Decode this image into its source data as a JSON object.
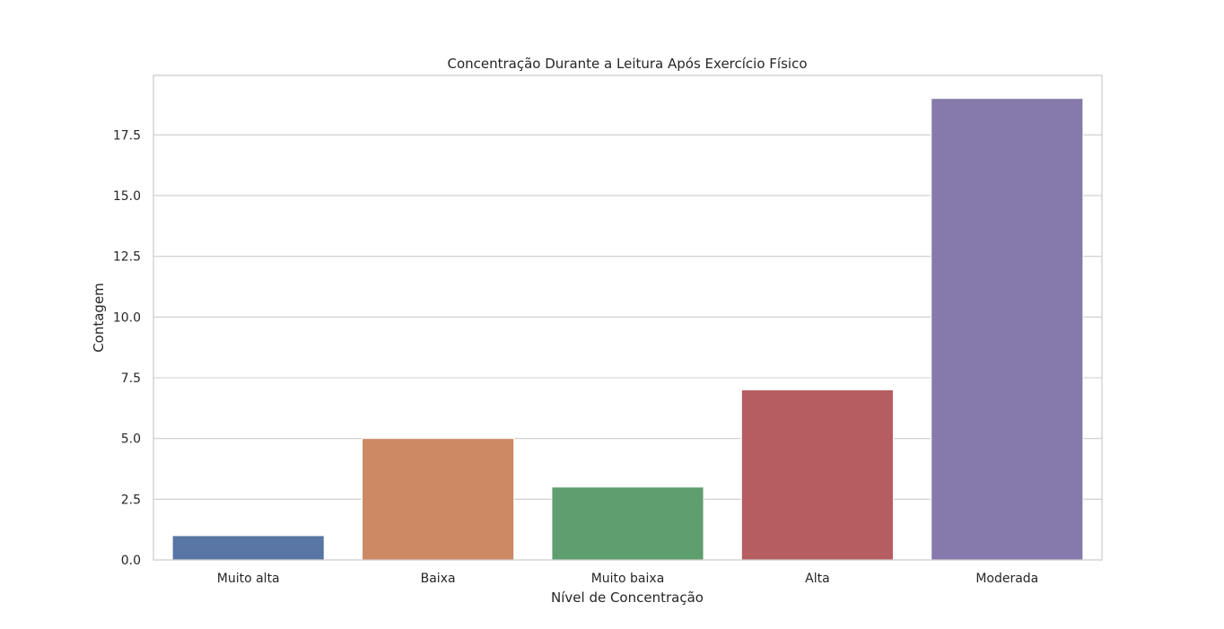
{
  "chart_data": {
    "type": "bar",
    "title": "Concentração Durante a Leitura Após Exercício Físico",
    "xlabel": "Nível de Concentração",
    "ylabel": "Contagem",
    "categories": [
      "Muito alta",
      "Baixa",
      "Muito baixa",
      "Alta",
      "Moderada"
    ],
    "values": [
      1,
      5,
      3,
      7,
      19
    ],
    "colors": [
      "#5975a4",
      "#cc8963",
      "#5f9e6e",
      "#b55d60",
      "#857aab"
    ],
    "ylim": [
      0,
      19.95
    ],
    "yticks": [
      0.0,
      2.5,
      5.0,
      7.5,
      10.0,
      12.5,
      15.0,
      17.5
    ],
    "ytick_labels": [
      "0.0",
      "2.5",
      "5.0",
      "7.5",
      "10.0",
      "12.5",
      "15.0",
      "17.5"
    ],
    "grid": true,
    "grid_axis": "y",
    "legend": "none"
  }
}
